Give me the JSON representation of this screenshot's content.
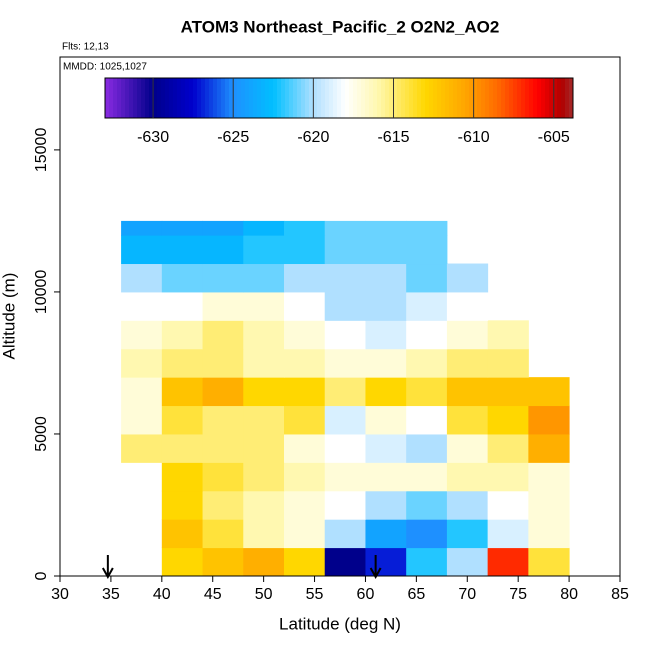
{
  "chart_data": {
    "type": "heatmap",
    "title": "ATOM3 Northeast_Pacific_2 O2N2_AO2",
    "subtitle": "Flts: 12,13",
    "annotation": "MMDD: 1025,1027",
    "x_label": "Latitude (deg N)",
    "y_label": "Altitude (m)",
    "xlim": [
      30,
      85
    ],
    "ylim": [
      0,
      18270
    ],
    "xticks": [
      30,
      35,
      40,
      45,
      50,
      55,
      60,
      65,
      70,
      75,
      80,
      85
    ],
    "yticks": [
      0,
      5000,
      10000,
      15000
    ],
    "x_bins": [
      36,
      40,
      44,
      48,
      52,
      56,
      60,
      64,
      68,
      72,
      76,
      80
    ],
    "y_bins": [
      0,
      1000,
      2000,
      3000,
      4000,
      5000,
      6000,
      7000,
      8000,
      9000,
      10000,
      11000,
      12000,
      12500
    ],
    "z": [
      [
        null,
        -613,
        -612,
        -611,
        -613,
        -630,
        -627,
        -622,
        -620,
        -607,
        -614
      ],
      [
        null,
        -612,
        -614,
        -616,
        -617,
        -620,
        -624,
        -625,
        -622,
        -619,
        -617
      ],
      [
        null,
        -613,
        -615,
        -616,
        -617,
        -618,
        -620,
        -621,
        -620,
        -618,
        -617
      ],
      [
        null,
        -613,
        -614,
        -615,
        -616,
        -617,
        -617,
        -617,
        -616,
        -616,
        -617
      ],
      [
        -615,
        -615,
        -615,
        -615,
        -617,
        -618,
        -619,
        -620,
        -617,
        -615,
        -611
      ],
      [
        -617,
        -614,
        -615,
        -615,
        -614,
        -619,
        -617,
        -618,
        -614,
        -613,
        -610
      ],
      [
        -617,
        -612,
        -611,
        -613,
        -613,
        -615,
        -613,
        -614,
        -612,
        -612,
        -612
      ],
      [
        -616,
        -615,
        -615,
        -616,
        -616,
        -617,
        -617,
        -616,
        -615,
        -615,
        null
      ],
      [
        -617,
        -616,
        -615,
        -616,
        -617,
        -618,
        -619,
        -618,
        -617,
        -616,
        null
      ],
      [
        -618,
        -618,
        -617,
        -617,
        -618,
        -620,
        -620,
        -619,
        -618,
        null,
        null
      ],
      [
        -620,
        -621,
        -621,
        -621,
        -620,
        -620,
        -620,
        -621,
        -620,
        null,
        null
      ],
      [
        -623,
        -623,
        -623,
        -622,
        -622,
        -621,
        -621,
        -621,
        null,
        null,
        null
      ],
      [
        -624,
        -624,
        -624,
        -623,
        -622,
        -621,
        -621,
        -621,
        null,
        null,
        null
      ]
    ],
    "colorbar_lim": [
      -633,
      -603.8
    ],
    "colorbar_ticks": [
      -630,
      -625,
      -620,
      -615,
      -610,
      -605
    ],
    "colorscale": [
      {
        "value": -633,
        "color": "#8a2be2"
      },
      {
        "value": -630,
        "color": "#00008b"
      },
      {
        "value": -627.5,
        "color": "#0000cd"
      },
      {
        "value": -625,
        "color": "#1e90ff"
      },
      {
        "value": -622.5,
        "color": "#00bfff"
      },
      {
        "value": -620,
        "color": "#b0e0ff"
      },
      {
        "value": -618,
        "color": "#ffffff"
      },
      {
        "value": -616,
        "color": "#fff8b0"
      },
      {
        "value": -613,
        "color": "#ffd700"
      },
      {
        "value": -610.5,
        "color": "#ffa500"
      },
      {
        "value": -608.5,
        "color": "#ff6a00"
      },
      {
        "value": -606,
        "color": "#ff0000"
      },
      {
        "value": -604.5,
        "color": "#b00000"
      },
      {
        "value": -603.8,
        "color": "#a52a2a"
      }
    ],
    "arrows_x": [
      34.7,
      61
    ]
  }
}
